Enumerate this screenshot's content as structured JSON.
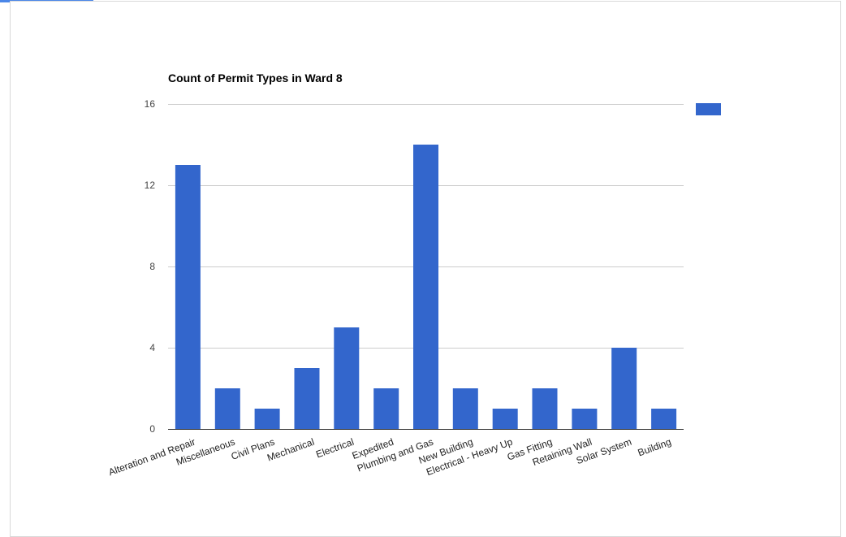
{
  "colors": {
    "bar": "#3366cc",
    "grid": "#cccccc",
    "axis": "#333333",
    "accent_tab": "#4a86e8"
  },
  "chart_data": {
    "type": "bar",
    "title": "Count of Permit Types in Ward 8",
    "xlabel": "",
    "ylabel": "",
    "ylim": [
      0,
      16
    ],
    "yticks": [
      0,
      4,
      8,
      12,
      16
    ],
    "grid": true,
    "legend_position": "right",
    "categories": [
      "Alteration and Repair",
      "Miscellaneous",
      "Civil Plans",
      "Mechanical",
      "Electrical",
      "Expedited",
      "Plumbing and Gas",
      "New Building",
      "Electrical - Heavy Up",
      "Gas Fitting",
      "Retaining Wall",
      "Solar System",
      "Building"
    ],
    "values": [
      13,
      2,
      1,
      3,
      5,
      2,
      14,
      2,
      1,
      2,
      1,
      4,
      1
    ]
  }
}
